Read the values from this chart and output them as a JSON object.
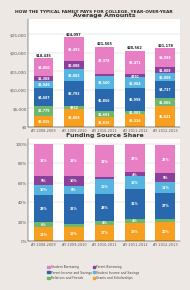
{
  "title": "HOW THE TYPICAL FAMILY PAYS FOR COLLEGE, YEAR-OVER-YEAR",
  "top_title": "Average Amounts",
  "bottom_title": "Funding Source Share",
  "years": [
    "AY 2008-2009",
    "AY 2009-2010",
    "AY 2010-2011",
    "AY 2011-2012",
    "AY 2012-2013"
  ],
  "totals": [
    18435,
    24097,
    21565,
    20562,
    21178
  ],
  "bar_data": {
    "student_borrowing": [
      4800,
      6493,
      7378,
      6471,
      4998
    ],
    "parent_borrowing": [
      1308,
      2088,
      464,
      791,
      1808
    ],
    "student_income": [
      1946,
      3083,
      3560,
      2984,
      2008
    ],
    "parent_income": [
      4687,
      6793,
      5856,
      5998,
      4737
    ],
    "relatives_friends": [
      2779,
      832,
      1691,
      1002,
      2006
    ],
    "grants_scholarships": [
      2915,
      4808,
      2616,
      3316,
      5621
    ]
  },
  "pct_data": {
    "student_borrowing": [
      33,
      33,
      33,
      29,
      29
    ],
    "parent_borrowing": [
      9,
      10,
      2,
      4,
      9
    ],
    "student_income": [
      10,
      8,
      15,
      13,
      11
    ],
    "parent_income": [
      28,
      31,
      28,
      31,
      27
    ],
    "relatives_friends": [
      6,
      3,
      4,
      4,
      3
    ],
    "grants_scholarships": [
      14,
      15,
      17,
      19,
      20
    ]
  },
  "colors": {
    "student_borrowing": "#e87ec4",
    "parent_borrowing": "#8b4099",
    "student_income": "#56b5e0",
    "parent_income": "#2968ac",
    "relatives_friends": "#6db76e",
    "grants_scholarships": "#f7a020"
  },
  "legend": [
    {
      "label": "Student Borrowing",
      "color": "#e87ec4"
    },
    {
      "label": "Parent Income and Savings",
      "color": "#2968ac"
    },
    {
      "label": "Relatives and Friends",
      "color": "#6db76e"
    },
    {
      "label": "Parent Borrowing",
      "color": "#8b4099"
    },
    {
      "label": "Student Income and Savings",
      "color": "#56b5e0"
    },
    {
      "label": "Grants and Scholarships",
      "color": "#f7a020"
    }
  ],
  "background": "#ede8e3",
  "bar_bg": "#ffffff"
}
